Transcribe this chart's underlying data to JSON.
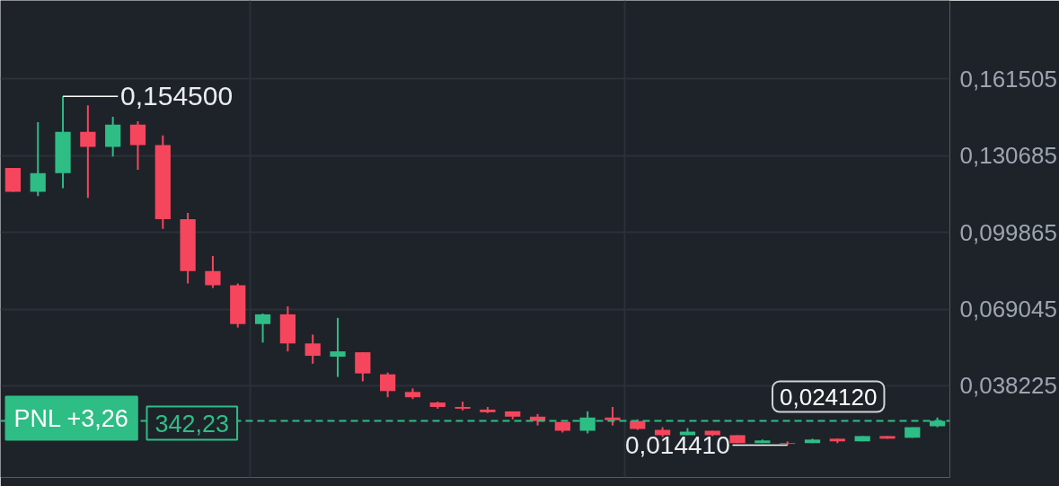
{
  "chart_data": {
    "type": "candlestick",
    "categories": [
      null,
      null,
      null,
      null,
      null,
      null,
      null,
      null,
      null,
      null,
      null,
      null,
      null,
      null,
      null,
      null,
      null,
      null,
      null,
      null,
      null,
      null,
      null,
      null,
      null,
      null,
      null,
      null,
      null,
      null,
      null,
      null,
      null,
      null,
      null,
      null,
      null,
      null
    ],
    "ohlc": [
      [
        0.12573,
        0.12573,
        0.11616,
        0.11616
      ],
      [
        0.11616,
        0.14415,
        0.11439,
        0.1236
      ],
      [
        0.1236,
        0.1545,
        0.11758,
        0.14025
      ],
      [
        0.14025,
        0.15088,
        0.11368,
        0.13423
      ],
      [
        0.13423,
        0.14627,
        0.13033,
        0.14308
      ],
      [
        0.14308,
        0.1445,
        0.12502,
        0.13494
      ],
      [
        0.13494,
        0.13883,
        0.10128,
        0.10518
      ],
      [
        0.10518,
        0.10766,
        0.07932,
        0.08428
      ],
      [
        0.08428,
        0.0903,
        0.07755,
        0.07861
      ],
      [
        0.07861,
        0.07932,
        0.06161,
        0.06302
      ],
      [
        0.06302,
        0.06727,
        0.05558,
        0.06692
      ],
      [
        0.06692,
        0.07011,
        0.05204,
        0.05523
      ],
      [
        0.05523,
        0.05877,
        0.04708,
        0.05027
      ],
      [
        0.04992,
        0.0655,
        0.04177,
        0.05204
      ],
      [
        0.05169,
        0.05169,
        0.04,
        0.04319
      ],
      [
        0.04283,
        0.04354,
        0.03362,
        0.0361
      ],
      [
        0.03575,
        0.03716,
        0.03291,
        0.03362
      ],
      [
        0.0315,
        0.03185,
        0.02902,
        0.02972
      ],
      [
        0.02972,
        0.03185,
        0.02831,
        0.02902
      ],
      [
        0.02866,
        0.02972,
        0.02724,
        0.0276
      ],
      [
        0.02795,
        0.02795,
        0.02476,
        0.02583
      ],
      [
        0.02583,
        0.02689,
        0.02228,
        0.02406
      ],
      [
        0.0237,
        0.0237,
        0.01945,
        0.02016
      ],
      [
        0.02016,
        0.02795,
        0.0191,
        0.02547
      ],
      [
        0.02547,
        0.02972,
        0.02228,
        0.02441
      ],
      [
        0.02406,
        0.02476,
        0.02051,
        0.02087
      ],
      [
        0.02051,
        0.02158,
        0.01768,
        0.01839
      ],
      [
        0.01839,
        0.02122,
        0.01839,
        0.0198
      ],
      [
        0.02016,
        0.02016,
        0.01803,
        0.01839
      ],
      [
        0.01839,
        0.01839,
        0.0152,
        0.0152
      ],
      [
        0.0152,
        0.01662,
        0.0152,
        0.01626
      ],
      [
        0.0152,
        0.01591,
        0.01441,
        0.0149
      ],
      [
        0.0152,
        0.01697,
        0.0152,
        0.01662
      ],
      [
        0.01697,
        0.01697,
        0.0152,
        0.01591
      ],
      [
        0.01591,
        0.01803,
        0.01591,
        0.01803
      ],
      [
        0.01803,
        0.01803,
        0.01697,
        0.01697
      ],
      [
        0.01733,
        0.02158,
        0.01733,
        0.02158
      ],
      [
        0.02193,
        0.02547,
        0.02158,
        0.02412
      ]
    ],
    "colors": [
      "#f6465d",
      "#2ebd85",
      "#2ebd85",
      "#f6465d",
      "#2ebd85",
      "#f6465d",
      "#f6465d",
      "#f6465d",
      "#f6465d",
      "#f6465d",
      "#2ebd85",
      "#f6465d",
      "#f6465d",
      "#2ebd85",
      "#f6465d",
      "#f6465d",
      "#f6465d",
      "#f6465d",
      "#f6465d",
      "#f6465d",
      "#f6465d",
      "#f6465d",
      "#f6465d",
      "#2ebd85",
      "#f6465d",
      "#f6465d",
      "#f6465d",
      "#2ebd85",
      "#f6465d",
      "#f6465d",
      "#2ebd85",
      "#f6465d",
      "#2ebd85",
      "#f6465d",
      "#2ebd85",
      "#f6465d",
      "#2ebd85",
      "#2ebd85"
    ],
    "ylim": [
      0.0014,
      0.193
    ],
    "yticks": [
      {
        "value": 0.038225,
        "label": "0,038225"
      },
      {
        "value": 0.069045,
        "label": "0,069045"
      },
      {
        "value": 0.099865,
        "label": "0,099865"
      },
      {
        "value": 0.130685,
        "label": "0,130685"
      },
      {
        "value": 0.161505,
        "label": "0,161505"
      }
    ],
    "grid": true,
    "tick_labels": "y",
    "ref_lines": [
      {
        "axis": "y",
        "value": 0.02412,
        "label": "0,024120",
        "color": "#2ebd85",
        "line_style": "dashed"
      }
    ],
    "annotations": [
      "0,154500",
      "0,014410",
      "PNL +3,26",
      "342,23"
    ]
  }
}
